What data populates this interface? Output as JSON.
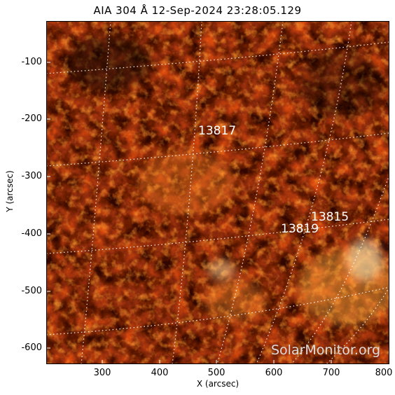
{
  "title": "AIA 304 Å 12-Sep-2024 23:28:05.129",
  "x_axis": {
    "label": "X (arcsec)",
    "range": [
      200,
      800
    ],
    "ticks": [
      "300",
      "400",
      "500",
      "600",
      "700",
      "800"
    ]
  },
  "y_axis": {
    "label": "Y (arcsec)",
    "range": [
      -625,
      -30
    ],
    "ticks": [
      "-100",
      "-200",
      "-300",
      "-400",
      "-500",
      "-600"
    ]
  },
  "active_regions": [
    "13817",
    "13815",
    "13819"
  ],
  "watermark": "SolarMonitor.org",
  "colors": {
    "background": "#000000",
    "solar_dark": "#5a0e00",
    "solar_mid": "#c03a0a",
    "solar_bright": "#ff9a30",
    "solar_hot": "#fff2c8",
    "grid": "#ffffff"
  },
  "image": {
    "content": "solar chromosphere in 304 Angstrom, red/orange heat colormap with heliographic grid",
    "grid_style": "dotted white"
  }
}
